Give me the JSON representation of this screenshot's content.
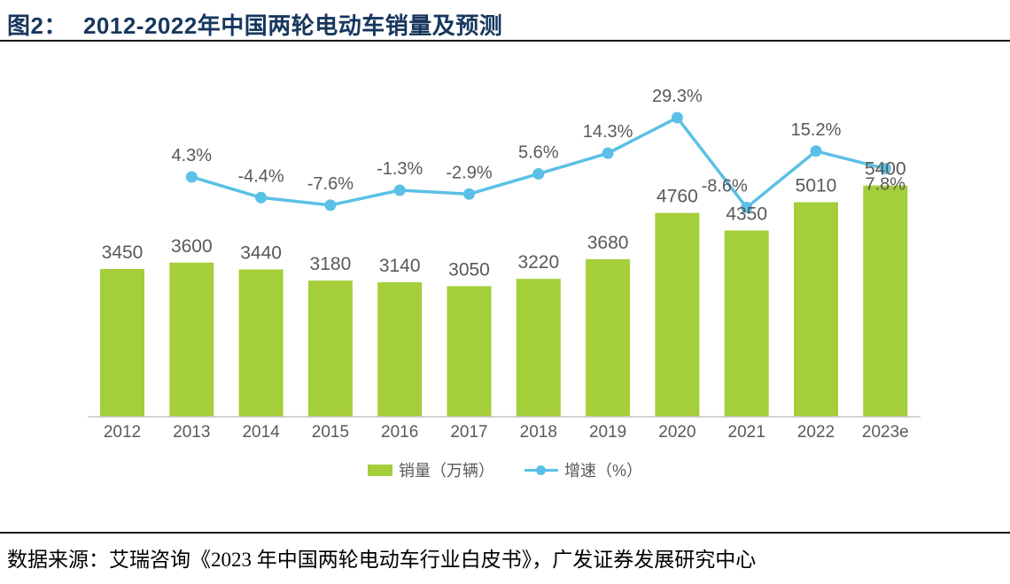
{
  "header": {
    "figure_label": "图2：",
    "title": "2012-2022年中国两轮电动车销量及预测"
  },
  "chart_data": {
    "type": "bar+line",
    "title": "2012-2022年中国两轮电动车销量及预测",
    "categories": [
      "2012",
      "2013",
      "2014",
      "2015",
      "2016",
      "2017",
      "2018",
      "2019",
      "2020",
      "2021",
      "2022",
      "2023e"
    ],
    "series": [
      {
        "name": "销量（万辆）",
        "type": "bar",
        "unit": "万辆",
        "color": "#A5CE3B",
        "values": [
          3450,
          3600,
          3440,
          3180,
          3140,
          3050,
          3220,
          3680,
          4760,
          4350,
          5010,
          5400
        ]
      },
      {
        "name": "增速（%）",
        "type": "line",
        "unit": "%",
        "color": "#5BC0E6",
        "values": [
          null,
          4.3,
          -4.4,
          -7.6,
          -1.3,
          -2.9,
          5.6,
          14.3,
          29.3,
          -8.6,
          15.2,
          7.8
        ]
      }
    ],
    "label_color": "#595959",
    "axis_color": "#C6C6C6",
    "gridlines": false,
    "legend_position": "bottom",
    "y_axis_visible": false,
    "data_labels_visible": true
  },
  "footer": {
    "source_text": "数据来源：艾瑞咨询《2023 年中国两轮电动车行业白皮书》，广发证券发展研究中心"
  }
}
